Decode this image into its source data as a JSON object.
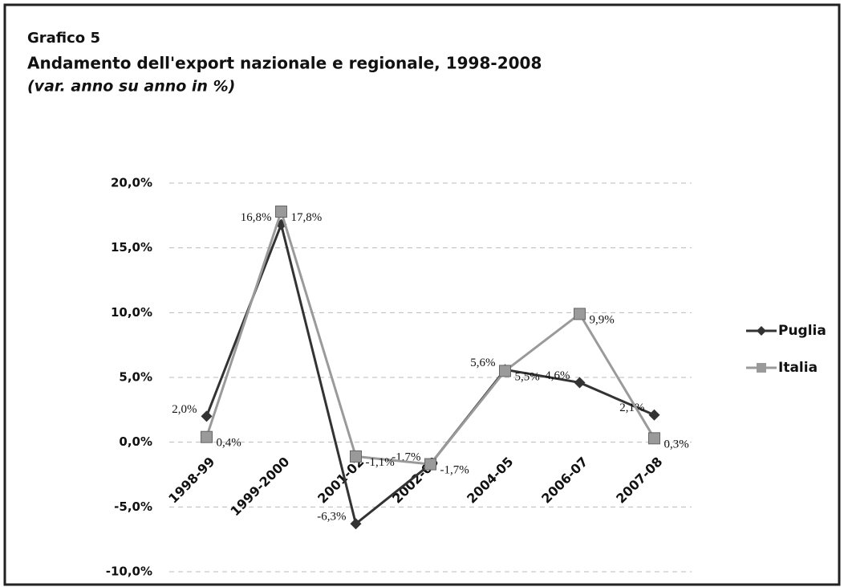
{
  "chart_data": {
    "type": "line",
    "title": "Grafico 5",
    "subtitle": "Andamento dell'export nazionale e regionale, 1998-2008",
    "y_label": "(var. anno su anno in %)",
    "categories": [
      "1998-99",
      "1999-2000",
      "2001-02",
      "2002-03",
      "2004-05",
      "2006-07",
      "2007-08"
    ],
    "series": [
      {
        "name": "Puglia",
        "color": "#333333",
        "marker": "diamond",
        "values": [
          2.0,
          16.8,
          -6.3,
          -1.7,
          5.6,
          4.6,
          2.1
        ],
        "value_labels": [
          "2,0%",
          "16,8%",
          "-6,3%",
          "-1,7%",
          "5,6%",
          "4,6%",
          "2,1%"
        ]
      },
      {
        "name": "Italia",
        "color": "#9a9a9a",
        "marker": "square",
        "values": [
          0.4,
          17.8,
          -1.1,
          -1.7,
          5.5,
          9.9,
          0.3
        ],
        "value_labels": [
          "0,4%",
          "17,8%",
          "-1,1%",
          "-1,7%",
          "5,5%",
          "9,9%",
          "0,3%"
        ]
      }
    ],
    "ylim": [
      -10,
      20
    ],
    "yticks": [
      {
        "value": -10,
        "label": "-10,0%"
      },
      {
        "value": -5,
        "label": "-5,0%"
      },
      {
        "value": 0,
        "label": "0,0%"
      },
      {
        "value": 5,
        "label": "5,0%"
      },
      {
        "value": 10,
        "label": "10,0%"
      },
      {
        "value": 15,
        "label": "15,0%"
      },
      {
        "value": 20,
        "label": "20,0%"
      }
    ],
    "grid": true,
    "legend": "right"
  }
}
